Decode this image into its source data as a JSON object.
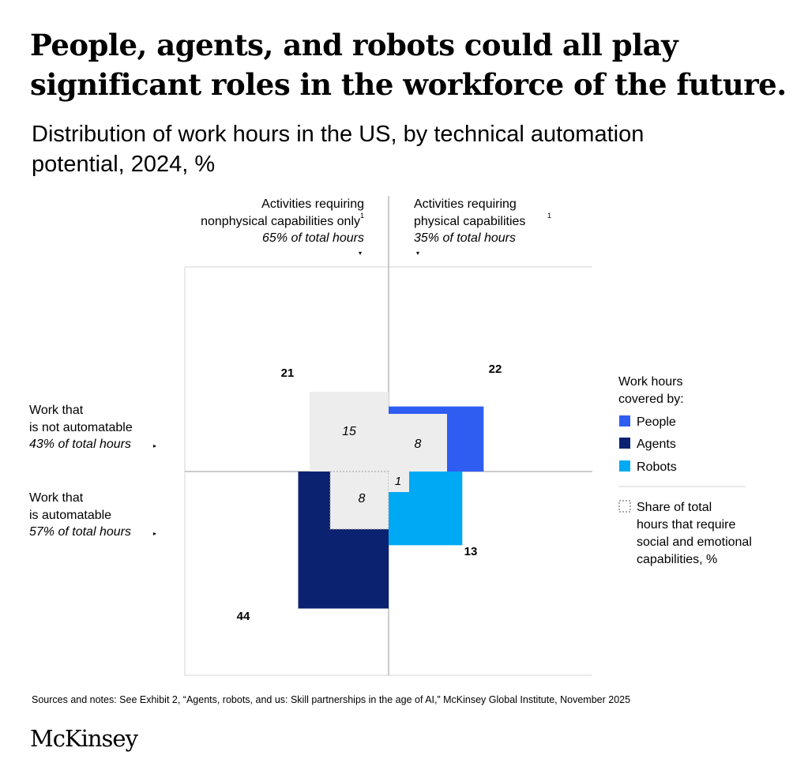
{
  "headline": {
    "line1": "People, agents, and robots could all play",
    "line2": "significant roles in the workforce of the future."
  },
  "subtitle": {
    "line1": "Distribution of work hours in the US, by technical automation",
    "line2_main": "potential, 2024,",
    "line2_unit": " %"
  },
  "chart_data": {
    "type": "quadrant-area",
    "title": "Distribution of work hours in the US, by technical automation potential, 2024, %",
    "columns": [
      {
        "label_line1": "Activities requiring",
        "label_line2": "nonphysical capabilities only",
        "footnote": "1",
        "share": "65% of total hours",
        "marker": "▾"
      },
      {
        "label_line1": "Activities requiring",
        "label_line2": "physical capabilities",
        "footnote": "1",
        "share": "35% of total hours",
        "marker": "▾"
      }
    ],
    "rows": [
      {
        "label_line1": "Work that",
        "label_line2": "is not automatable",
        "share": "43% of total hours",
        "marker": "▸"
      },
      {
        "label_line1": "Work that",
        "label_line2": "is automatable",
        "share": "57% of total hours",
        "marker": "▸"
      }
    ],
    "series": [
      {
        "name": "People",
        "quadrant": "nonphysical / not automatable",
        "value": 21,
        "label": "21",
        "social_emotional": 15,
        "social_label": "15",
        "color": "#2f5df2"
      },
      {
        "name": "People",
        "quadrant": "physical / not automatable",
        "value": 22,
        "label": "22",
        "social_emotional": 8,
        "social_label": "8",
        "color": "#2f5df2"
      },
      {
        "name": "Agents",
        "quadrant": "nonphysical / automatable",
        "value": 44,
        "label": "44",
        "social_emotional": 8,
        "social_label": "8",
        "color": "#0b2270"
      },
      {
        "name": "Robots",
        "quadrant": "physical / automatable",
        "value": 13,
        "label": "13",
        "social_emotional": 1,
        "social_label": "1",
        "color": "#00a9f4"
      }
    ],
    "legend": {
      "title_line1": "Work hours",
      "title_line2": "covered by:",
      "items": [
        {
          "name": "People",
          "color": "#2f5df2"
        },
        {
          "name": "Agents",
          "color": "#0b2270"
        },
        {
          "name": "Robots",
          "color": "#00a9f4"
        }
      ],
      "social_line1": "Share of total",
      "social_line2": "hours that require",
      "social_line3": "social and emotional",
      "social_line4": "capabilities, %"
    },
    "colors": {
      "social_fill": "#ededed",
      "axis": "#9a9a9a",
      "frame": "#d6d6d6"
    }
  },
  "sources": "Sources and notes: See Exhibit 2, “Agents, robots, and us: Skill partnerships in the age of AI,” McKinsey Global Institute, November 2025",
  "logo": "McKinsey"
}
